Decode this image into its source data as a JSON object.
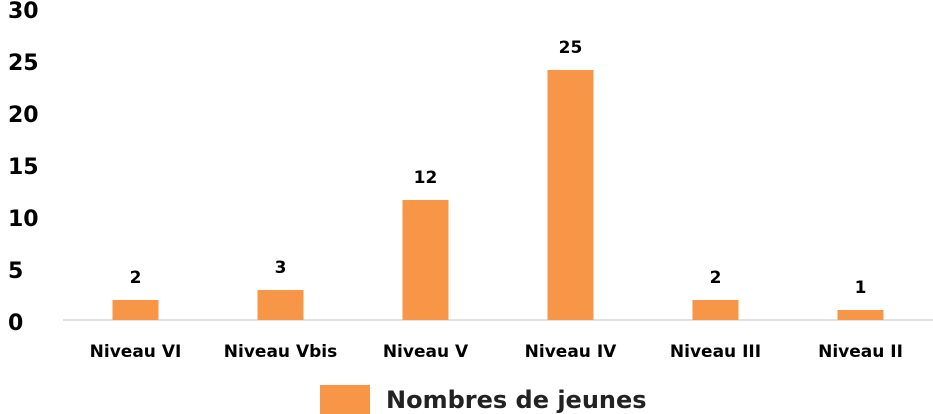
{
  "chart_data": {
    "type": "bar",
    "categories": [
      "Niveau VI",
      "Niveau Vbis",
      "Niveau V",
      "Niveau IV",
      "Niveau III",
      "Niveau II"
    ],
    "series": [
      {
        "name": "Nombres de jeunes",
        "color": "#f79646",
        "values": [
          2,
          3,
          12,
          25,
          2,
          1
        ]
      }
    ],
    "ylim": [
      0,
      30
    ],
    "yticks": [
      0,
      5,
      10,
      15,
      20,
      25,
      30
    ],
    "grid": false,
    "legend": "bottom"
  }
}
